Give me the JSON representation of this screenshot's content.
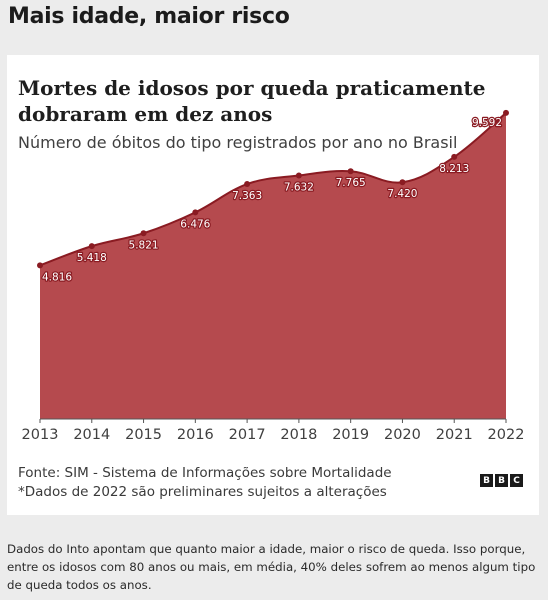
{
  "header": {
    "title": "Mais idade, maior risco"
  },
  "chart_data": {
    "type": "area",
    "title": "Mortes de idosos por queda praticamente dobraram em dez anos",
    "subtitle": "Número de óbitos do tipo registrados por ano no Brasil",
    "x": [
      "2013",
      "2014",
      "2015",
      "2016",
      "2017",
      "2018",
      "2019",
      "2020",
      "2021",
      "2022"
    ],
    "values": [
      4816,
      5418,
      5821,
      6476,
      7363,
      7632,
      7765,
      7420,
      8213,
      9592
    ],
    "value_labels": [
      "4.816",
      "5.418",
      "5.821",
      "6.476",
      "7.363",
      "7.632",
      "7.765",
      "7.420",
      "8.213",
      "9.592"
    ],
    "ylim": [
      0,
      11000
    ],
    "grid": false,
    "fill_color": "#b54a4e",
    "line_color": "#8a1b22"
  },
  "source": {
    "line1": "Fonte: SIM - Sistema de Informações sobre Mortalidade",
    "line2": "*Dados de 2022 são preliminares sujeitos a alterações"
  },
  "logo": {
    "letters": [
      "B",
      "B",
      "C"
    ]
  },
  "caption": "Dados do Into apontam que quanto maior a idade, maior o risco de queda. Isso porque, entre os idosos com 80 anos ou mais, em média, 40% deles sofrem ao menos algum tipo de queda todos os anos."
}
